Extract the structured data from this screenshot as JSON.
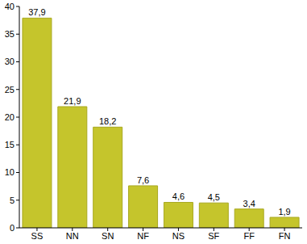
{
  "chart_data": {
    "type": "bar",
    "categories": [
      "SS",
      "NN",
      "SN",
      "NF",
      "NS",
      "SF",
      "FF",
      "FN"
    ],
    "values": [
      37.9,
      21.9,
      18.2,
      7.6,
      4.6,
      4.5,
      3.4,
      1.9
    ],
    "value_labels": [
      "37,9",
      "21,9",
      "18,2",
      "7,6",
      "4,6",
      "4,5",
      "3,4",
      "1,9"
    ],
    "color": "#c5c52c",
    "ylim": [
      0,
      40
    ],
    "yticks": [
      0,
      5,
      10,
      15,
      20,
      25,
      30,
      35,
      40
    ],
    "grid": false,
    "data_labels": true
  }
}
